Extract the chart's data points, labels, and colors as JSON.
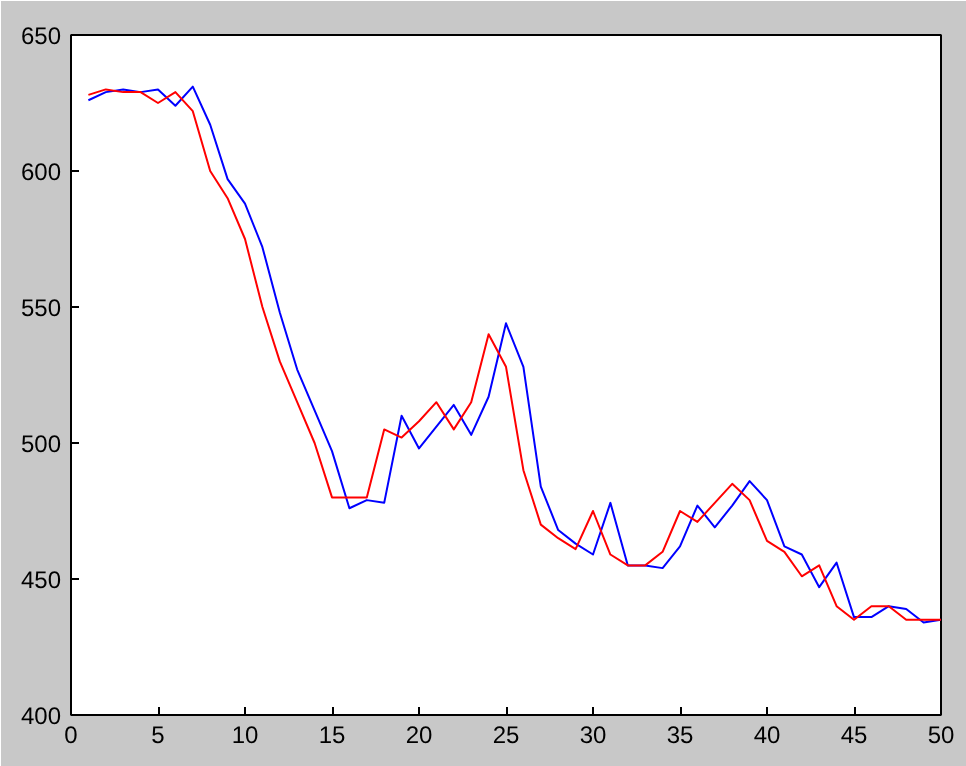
{
  "chart_data": {
    "type": "line",
    "x": [
      1,
      2,
      3,
      4,
      5,
      6,
      7,
      8,
      9,
      10,
      11,
      12,
      13,
      14,
      15,
      16,
      17,
      18,
      19,
      20,
      21,
      22,
      23,
      24,
      25,
      26,
      27,
      28,
      29,
      30,
      31,
      32,
      33,
      34,
      35,
      36,
      37,
      38,
      39,
      40,
      41,
      42,
      43,
      44,
      45,
      46,
      47,
      48,
      49,
      50
    ],
    "series": [
      {
        "color": "#0000ff",
        "values": [
          626,
          629,
          630,
          629,
          630,
          624,
          631,
          617,
          597,
          588,
          572,
          548,
          527,
          512,
          497,
          476,
          479,
          478,
          510,
          498,
          506,
          514,
          503,
          517,
          544,
          528,
          484,
          468,
          463,
          459,
          478,
          455,
          455,
          454,
          462,
          477,
          469,
          477,
          486,
          479,
          462,
          459,
          447,
          456,
          436,
          436,
          440,
          439,
          434,
          435
        ]
      },
      {
        "color": "#ff0000",
        "values": [
          628,
          630,
          629,
          629,
          625,
          629,
          622,
          600,
          590,
          575,
          550,
          530,
          515,
          500,
          480,
          480,
          480,
          505,
          502,
          508,
          515,
          505,
          515,
          540,
          528,
          490,
          470,
          465,
          461,
          475,
          459,
          455,
          455,
          460,
          475,
          471,
          478,
          485,
          479,
          464,
          460,
          451,
          455,
          440,
          435,
          440,
          440,
          435,
          435,
          435
        ]
      }
    ],
    "xlim": [
      0,
      50
    ],
    "xticks": [
      0,
      5,
      10,
      15,
      20,
      25,
      30,
      35,
      40,
      45,
      50
    ],
    "ylim": [
      400,
      650
    ],
    "yticks": [
      400,
      450,
      500,
      550,
      600,
      650
    ],
    "grid": false,
    "line_style": "solid",
    "marker": "none"
  }
}
